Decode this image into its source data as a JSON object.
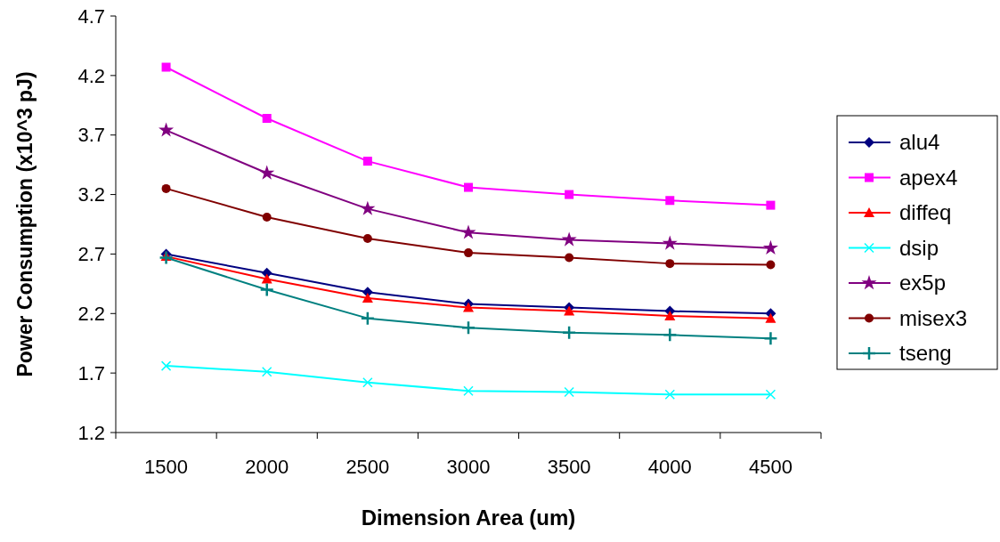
{
  "chart_data": {
    "type": "line",
    "xlabel": "Dimension Area (um)",
    "ylabel": "Power Consumption (x10^3 pJ)",
    "categories": [
      "1500",
      "2000",
      "2500",
      "3000",
      "3500",
      "4000",
      "4500"
    ],
    "ylim": [
      1.2,
      4.7
    ],
    "yticks": [
      1.2,
      1.7,
      2.2,
      2.7,
      3.2,
      3.7,
      4.2,
      4.7
    ],
    "grid": false,
    "legend": "right",
    "series": [
      {
        "name": "alu4",
        "color": "#000080",
        "marker": "diamond",
        "values": [
          2.7,
          2.54,
          2.38,
          2.28,
          2.25,
          2.22,
          2.2
        ]
      },
      {
        "name": "apex4",
        "color": "#ff00ff",
        "marker": "square",
        "values": [
          4.27,
          3.84,
          3.48,
          3.26,
          3.2,
          3.15,
          3.11
        ]
      },
      {
        "name": "diffeq",
        "color": "#ff0000",
        "marker": "triangle",
        "values": [
          2.68,
          2.49,
          2.33,
          2.25,
          2.22,
          2.18,
          2.16
        ]
      },
      {
        "name": "dsip",
        "color": "#00ffff",
        "marker": "cross",
        "values": [
          1.76,
          1.71,
          1.62,
          1.55,
          1.54,
          1.52,
          1.52
        ]
      },
      {
        "name": "ex5p",
        "color": "#800080",
        "marker": "star",
        "values": [
          3.74,
          3.38,
          3.08,
          2.88,
          2.82,
          2.79,
          2.75
        ]
      },
      {
        "name": "misex3",
        "color": "#800000",
        "marker": "circle",
        "values": [
          3.25,
          3.01,
          2.83,
          2.71,
          2.67,
          2.62,
          2.61
        ]
      },
      {
        "name": "tseng",
        "color": "#008080",
        "marker": "plus",
        "values": [
          2.67,
          2.4,
          2.16,
          2.08,
          2.04,
          2.02,
          1.99
        ]
      }
    ]
  }
}
